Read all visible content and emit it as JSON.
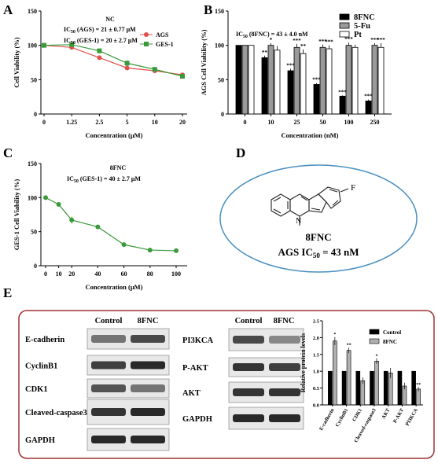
{
  "panels": {
    "A": "A",
    "B": "B",
    "C": "C",
    "D": "D",
    "E": "E"
  },
  "chart_data": [
    {
      "id": "A",
      "type": "line",
      "x_labels": [
        "0",
        "1.25",
        "2.5",
        "5",
        "10",
        "20"
      ],
      "xlabel": "Concentration (μM)",
      "ylabel": "Cell Viability (%)",
      "ylim": [
        0,
        150
      ],
      "yticks": [
        "0",
        "50",
        "100",
        "150"
      ],
      "annotations": [
        "NC",
        "IC50 (AGS) = 21 ± 0.77 μM",
        "IC50 (GES-1) = 20 ± 2.7 μM"
      ],
      "series": [
        {
          "name": "AGS",
          "color": "#e0504a",
          "marker": "circle",
          "values": [
            100,
            97,
            82,
            67,
            63,
            57
          ],
          "err": [
            0,
            2,
            2,
            3,
            2,
            2
          ]
        },
        {
          "name": "GES-1",
          "color": "#3a9a3a",
          "marker": "square",
          "values": [
            100,
            101,
            92,
            74,
            65,
            55
          ],
          "err": [
            0,
            2,
            2,
            4,
            2,
            2
          ]
        }
      ]
    },
    {
      "id": "B",
      "type": "bar",
      "categories": [
        "0",
        "10",
        "25",
        "50",
        "100",
        "250"
      ],
      "xlabel": "Concentration (nM)",
      "ylabel": "AGS Cell Viability (%)",
      "ylim": [
        0,
        150
      ],
      "yticks": [
        "0",
        "50",
        "100",
        "150"
      ],
      "annotation": "IC50 (8FNC) = 43 ± 4.0 nM",
      "series": [
        {
          "name": "8FNC",
          "fill": "#000000",
          "values": [
            100,
            82,
            63,
            43,
            26,
            19
          ],
          "err": [
            0,
            3,
            3,
            2,
            1,
            2
          ]
        },
        {
          "name": "5-Fu",
          "fill": "#9a9a9a",
          "values": [
            100,
            100,
            97,
            97,
            100,
            100
          ],
          "err": [
            0,
            3,
            5,
            4,
            4,
            3
          ]
        },
        {
          "name": "Pt",
          "fill": "#ffffff",
          "values": [
            100,
            93,
            88,
            95,
            97,
            97
          ],
          "err": [
            0,
            6,
            6,
            5,
            4,
            6
          ]
        }
      ],
      "significance": [
        [
          "",
          "",
          ""
        ],
        [
          "**",
          "*",
          ""
        ],
        [
          "***",
          "***",
          "**"
        ],
        [
          "***",
          "***",
          "***"
        ],
        [
          "***",
          "***",
          ""
        ],
        [
          "***",
          "***",
          "***"
        ]
      ]
    },
    {
      "id": "C",
      "type": "line",
      "x_labels": [
        "0",
        "10",
        "20",
        "40",
        "60",
        "80",
        "100"
      ],
      "x": [
        0,
        10,
        20,
        40,
        60,
        80,
        100
      ],
      "xlabel": "Concentration (μM)",
      "ylabel": "GES-1 Cell Viability (%)",
      "ylim": [
        0,
        150
      ],
      "yticks": [
        "0",
        "50",
        "100",
        "150"
      ],
      "annotations": [
        "8FNC",
        "IC50 (GES-1) = 40 ± 2.7 μM"
      ],
      "series": [
        {
          "name": "8FNC",
          "color": "#3a9a3a",
          "values": [
            100,
            90,
            67,
            57,
            31,
            23,
            22
          ],
          "err": [
            0,
            2,
            5,
            3,
            3,
            2,
            1
          ]
        }
      ]
    },
    {
      "id": "E",
      "type": "bar",
      "categories": [
        "E-cadherin",
        "CyclinB1",
        "CDK1",
        "Cleaved-caspase3",
        "AKT",
        "P-AKT",
        "PI3KCA"
      ],
      "ylabel": "Relative protein levels",
      "ylim": [
        0,
        2.5
      ],
      "yticks": [
        "0.0",
        "0.5",
        "1.0",
        "1.5",
        "2.0",
        "2.5"
      ],
      "series": [
        {
          "name": "Control",
          "fill": "#000000",
          "values": [
            1,
            1,
            1,
            1,
            1,
            1,
            1
          ]
        },
        {
          "name": "8FNC",
          "fill": "#b0b0b0",
          "values": [
            1.9,
            1.62,
            0.72,
            1.3,
            0.95,
            0.56,
            0.47
          ],
          "err": [
            0.12,
            0.08,
            0.1,
            0.08,
            0.15,
            0.1,
            0.06
          ]
        }
      ],
      "significance": [
        "*",
        "**",
        "",
        "*",
        "",
        "",
        "**"
      ]
    }
  ],
  "panelD": {
    "F": "F",
    "N": "N",
    "compound": "8FNC",
    "ic50_prefix": "AGS IC",
    "ic50_sub": "50",
    "ic50_value": " = 43 nM"
  },
  "panelE": {
    "header_control": "Control",
    "header_8fnc": "8FNC",
    "left_proteins": [
      "E-cadherin",
      "CyclinB1",
      "CDK1",
      "Cleaved-caspase3",
      "GAPDH"
    ],
    "right_proteins": [
      "PI3KCA",
      "P-AKT",
      "AKT",
      "GAPDH"
    ]
  },
  "colors": {
    "frame": "#a03030",
    "ellipse": "#4a8fc0",
    "nc_legend_A": "#000000"
  }
}
